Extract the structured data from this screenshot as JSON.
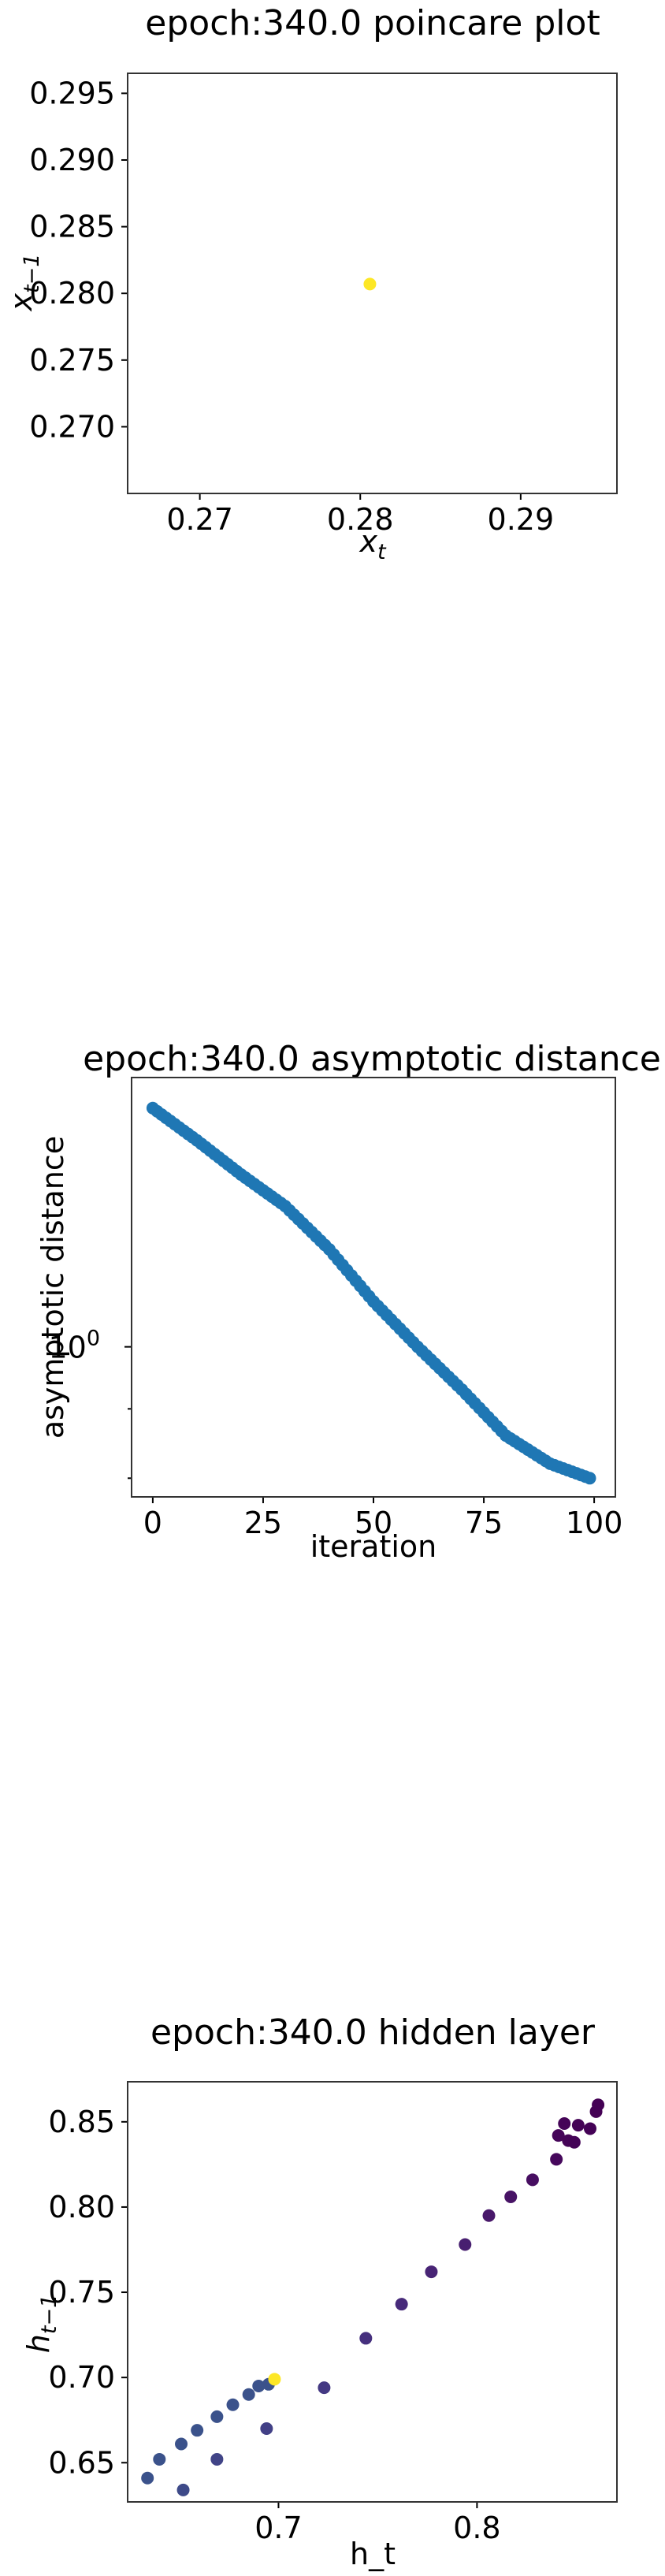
{
  "chart_data": [
    {
      "type": "scatter",
      "title": "epoch:340.0 poincare plot",
      "xlabel_base": "x",
      "xlabel_sub": "t",
      "ylabel_base": "x",
      "ylabel_sub": "t−1",
      "xlim": [
        0.2655,
        0.296
      ],
      "ylim": [
        0.265,
        0.2965
      ],
      "xticks": [
        0.27,
        0.28,
        0.29
      ],
      "xtick_labels": [
        "0.27",
        "0.28",
        "0.29"
      ],
      "yticks": [
        0.27,
        0.275,
        0.28,
        0.285,
        0.29,
        0.295
      ],
      "ytick_labels": [
        "0.270",
        "0.275",
        "0.280",
        "0.285",
        "0.290",
        "0.295"
      ],
      "points": [
        {
          "x": 0.2806,
          "y": 0.2807,
          "color": "#fde725"
        }
      ],
      "grid": false
    },
    {
      "type": "scatter",
      "title": "epoch:340.0 asymptotic distance",
      "xlabel": "iteration",
      "ylabel": "asymptotic distance",
      "yscale": "log",
      "xlim": [
        -4.8,
        104.8
      ],
      "ylim": [
        0.775,
        1.58
      ],
      "xticks": [
        0,
        25,
        50,
        75,
        100
      ],
      "xtick_labels": [
        "0",
        "25",
        "50",
        "75",
        "100"
      ],
      "yticks": [
        1.0
      ],
      "ytick_label_base": "10",
      "ytick_label_exp": "0",
      "color": "#1f77b4",
      "x_start": 0,
      "x_end": 99,
      "y_anchors": [
        [
          0,
          1.5
        ],
        [
          10,
          1.42
        ],
        [
          20,
          1.34
        ],
        [
          30,
          1.27
        ],
        [
          40,
          1.18
        ],
        [
          50,
          1.08
        ],
        [
          60,
          1.0
        ],
        [
          70,
          0.93
        ],
        [
          80,
          0.86
        ],
        [
          90,
          0.82
        ],
        [
          99,
          0.8
        ]
      ],
      "grid": false
    },
    {
      "type": "scatter",
      "title": "epoch:340.0 hidden layer",
      "xlabel": "h_t",
      "ylabel_base": "h",
      "ylabel_sub": "t−1",
      "xlim": [
        0.624,
        0.8705
      ],
      "ylim": [
        0.627,
        0.8735
      ],
      "xticks": [
        0.7,
        0.8
      ],
      "xtick_labels": [
        "0.7",
        "0.8"
      ],
      "yticks": [
        0.65,
        0.7,
        0.75,
        0.8,
        0.85
      ],
      "ytick_labels": [
        "0.65",
        "0.70",
        "0.75",
        "0.80",
        "0.85"
      ],
      "points": [
        {
          "x": 0.634,
          "y": 0.641,
          "color": "#3b528b"
        },
        {
          "x": 0.64,
          "y": 0.652,
          "color": "#3b528b"
        },
        {
          "x": 0.651,
          "y": 0.661,
          "color": "#3b528b"
        },
        {
          "x": 0.652,
          "y": 0.634,
          "color": "#3e4a89"
        },
        {
          "x": 0.659,
          "y": 0.669,
          "color": "#3b528b"
        },
        {
          "x": 0.669,
          "y": 0.677,
          "color": "#3b528b"
        },
        {
          "x": 0.669,
          "y": 0.652,
          "color": "#414487"
        },
        {
          "x": 0.677,
          "y": 0.684,
          "color": "#3b528b"
        },
        {
          "x": 0.685,
          "y": 0.69,
          "color": "#3b528b"
        },
        {
          "x": 0.69,
          "y": 0.695,
          "color": "#3b528b"
        },
        {
          "x": 0.695,
          "y": 0.696,
          "color": "#3b528b"
        },
        {
          "x": 0.694,
          "y": 0.67,
          "color": "#424086"
        },
        {
          "x": 0.698,
          "y": 0.699,
          "color": "#fde725"
        },
        {
          "x": 0.723,
          "y": 0.694,
          "color": "#443983"
        },
        {
          "x": 0.744,
          "y": 0.723,
          "color": "#46307e"
        },
        {
          "x": 0.762,
          "y": 0.743,
          "color": "#472a7a"
        },
        {
          "x": 0.777,
          "y": 0.762,
          "color": "#482475"
        },
        {
          "x": 0.794,
          "y": 0.778,
          "color": "#481f70"
        },
        {
          "x": 0.806,
          "y": 0.795,
          "color": "#48186a"
        },
        {
          "x": 0.817,
          "y": 0.806,
          "color": "#471365"
        },
        {
          "x": 0.828,
          "y": 0.816,
          "color": "#470e61"
        },
        {
          "x": 0.84,
          "y": 0.828,
          "color": "#46085c"
        },
        {
          "x": 0.841,
          "y": 0.842,
          "color": "#450559"
        },
        {
          "x": 0.844,
          "y": 0.849,
          "color": "#450457"
        },
        {
          "x": 0.846,
          "y": 0.839,
          "color": "#450457"
        },
        {
          "x": 0.849,
          "y": 0.838,
          "color": "#440356"
        },
        {
          "x": 0.851,
          "y": 0.848,
          "color": "#440356"
        },
        {
          "x": 0.857,
          "y": 0.846,
          "color": "#440256"
        },
        {
          "x": 0.86,
          "y": 0.856,
          "color": "#440154"
        },
        {
          "x": 0.861,
          "y": 0.86,
          "color": "#440154"
        }
      ],
      "grid": false
    }
  ]
}
